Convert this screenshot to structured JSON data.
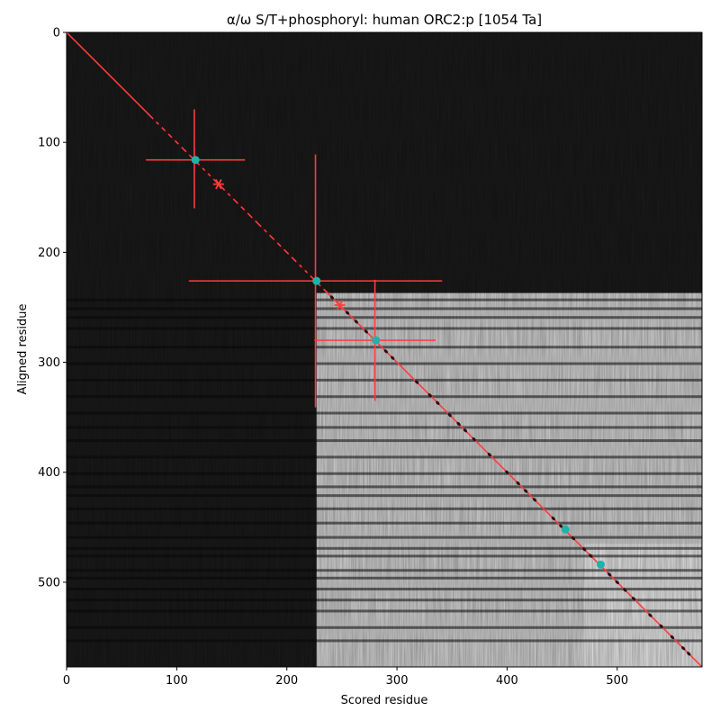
{
  "chart_data": {
    "type": "heatmap",
    "title": "α/ω S/T+phosphoryl: human ORC2:p [1054 Ta]",
    "xlabel": "Scored residue",
    "ylabel": "Aligned residue",
    "xlim": [
      0,
      577
    ],
    "ylim": [
      577,
      0
    ],
    "xticks": [
      0,
      100,
      200,
      300,
      400,
      500
    ],
    "yticks": [
      0,
      100,
      200,
      300,
      400,
      500
    ],
    "colormap": "grayscale",
    "blocks": [
      {
        "x": [
          0,
          577
        ],
        "y": [
          0,
          577
        ],
        "shade": 0.1
      },
      {
        "x": [
          227,
          577
        ],
        "y": [
          237,
          577
        ],
        "shade": 0.82
      },
      {
        "x": [
          470,
          577
        ],
        "y": [
          465,
          577
        ],
        "shade": 0.9
      }
    ],
    "dark_rows": [
      242,
      250,
      258,
      268,
      285,
      300,
      315,
      330,
      345,
      358,
      370,
      385,
      400,
      412,
      420,
      432,
      445,
      458,
      468,
      475,
      488,
      495,
      505,
      515,
      525,
      540,
      552
    ],
    "diagonal_line": {
      "color": "#ff3b3b",
      "from": [
        0,
        0
      ],
      "to": [
        577,
        577
      ]
    },
    "diagonal_markers": [
      80,
      85,
      91,
      97,
      103,
      110,
      122,
      127,
      132,
      145,
      150,
      157,
      163,
      170,
      178,
      183,
      190,
      196,
      203,
      210,
      215,
      220,
      232,
      241,
      255,
      263,
      272,
      290,
      296,
      318,
      330,
      337,
      348,
      356,
      362,
      370,
      384,
      400,
      410,
      417,
      425,
      442,
      449,
      460,
      470,
      476,
      493,
      500,
      507,
      515,
      530,
      540,
      550,
      560,
      565
    ],
    "highlight_points": {
      "color": "#20b2aa",
      "points": [
        [
          117,
          116
        ],
        [
          227,
          226
        ],
        [
          281,
          280
        ],
        [
          453,
          452
        ],
        [
          485,
          484
        ]
      ]
    },
    "error_bars": {
      "color": "#ff3b3b",
      "items": [
        {
          "x": 116,
          "y": 116,
          "xerr": [
            72,
            162
          ],
          "yerr": [
            70,
            160
          ]
        },
        {
          "x": 226,
          "y": 226,
          "xerr": [
            111,
            341
          ],
          "yerr": [
            111,
            341
          ]
        },
        {
          "x": 280,
          "y": 280,
          "xerr": [
            225,
            335
          ],
          "yerr": [
            225,
            335
          ]
        }
      ]
    },
    "star_markers": {
      "color": "#ff3b3b",
      "points": [
        [
          138,
          138
        ],
        [
          248,
          248
        ]
      ]
    }
  }
}
